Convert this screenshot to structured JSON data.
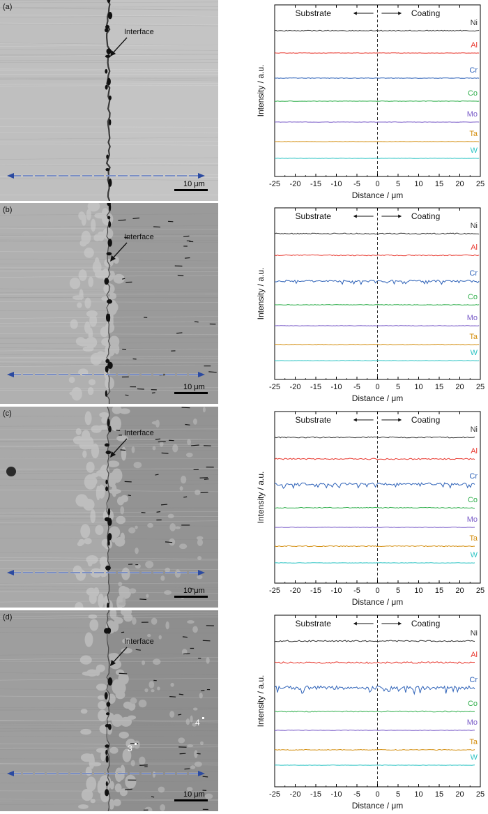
{
  "figure": {
    "interface_label": "Interface",
    "scale_bar_label": "10 μm",
    "substrate_label": "Substrate",
    "coating_label": "Coating",
    "panels": [
      {
        "letter": "(a)",
        "points": []
      },
      {
        "letter": "(b)",
        "points": []
      },
      {
        "letter": "(c)",
        "points": []
      },
      {
        "letter": "(d)",
        "points": [
          "3",
          "4"
        ]
      }
    ]
  },
  "colors": {
    "Ni": "#333333",
    "Al": "#e8382f",
    "Cr": "#2e62b8",
    "Co": "#2fae4b",
    "Mo": "#7a5cc8",
    "Ta": "#d38e0f",
    "W": "#2ec4c4",
    "arrow": "#2b4aa0"
  },
  "chart_data": [
    {
      "type": "line",
      "panel": "(a)",
      "xlabel": "Distance / μm",
      "ylabel": "Intensity / a.u.",
      "xlim": [
        -25,
        25
      ],
      "xticks": [
        -25,
        -20,
        -15,
        -10,
        -5,
        0,
        5,
        10,
        15,
        20,
        25
      ],
      "legend": "inline-right",
      "series": [
        {
          "name": "Ni",
          "roughness": 0.35
        },
        {
          "name": "Al",
          "roughness": 0.15
        },
        {
          "name": "Cr",
          "roughness": 0.2
        },
        {
          "name": "Co",
          "roughness": 0.12
        },
        {
          "name": "Mo",
          "roughness": 0.1
        },
        {
          "name": "Ta",
          "roughness": 0.12
        },
        {
          "name": "W",
          "roughness": 0.1
        }
      ]
    },
    {
      "type": "line",
      "panel": "(b)",
      "xlabel": "Distance / μm",
      "ylabel": "Intensity / a.u.",
      "xlim": [
        -25,
        25
      ],
      "xticks": [
        -25,
        -20,
        -15,
        -10,
        -5,
        0,
        5,
        10,
        15,
        20,
        25
      ],
      "legend": "inline-right",
      "series": [
        {
          "name": "Ni",
          "roughness": 0.4
        },
        {
          "name": "Al",
          "roughness": 0.35
        },
        {
          "name": "Cr",
          "roughness": 0.7
        },
        {
          "name": "Co",
          "roughness": 0.2
        },
        {
          "name": "Mo",
          "roughness": 0.12
        },
        {
          "name": "Ta",
          "roughness": 0.25
        },
        {
          "name": "W",
          "roughness": 0.12
        }
      ]
    },
    {
      "type": "line",
      "panel": "(c)",
      "xlabel": "Distance / μm",
      "ylabel": "Intensity / a.u.",
      "xlim": [
        -25,
        25
      ],
      "xticks": [
        -25,
        -20,
        -15,
        -10,
        -5,
        0,
        5,
        10,
        15,
        20,
        25
      ],
      "legend": "inline-right",
      "series": [
        {
          "name": "Ni",
          "roughness": 0.4
        },
        {
          "name": "Al",
          "roughness": 0.5
        },
        {
          "name": "Cr",
          "roughness": 0.9
        },
        {
          "name": "Co",
          "roughness": 0.3
        },
        {
          "name": "Mo",
          "roughness": 0.15
        },
        {
          "name": "Ta",
          "roughness": 0.3
        },
        {
          "name": "W",
          "roughness": 0.12
        }
      ]
    },
    {
      "type": "line",
      "panel": "(d)",
      "xlabel": "Distance / μm",
      "ylabel": "Intensity / a.u.",
      "xlim": [
        -25,
        25
      ],
      "xticks": [
        -25,
        -20,
        -15,
        -10,
        -5,
        0,
        5,
        10,
        15,
        20,
        25
      ],
      "legend": "inline-right",
      "series": [
        {
          "name": "Ni",
          "roughness": 0.5
        },
        {
          "name": "Al",
          "roughness": 0.6
        },
        {
          "name": "Cr",
          "roughness": 1.3
        },
        {
          "name": "Co",
          "roughness": 0.4
        },
        {
          "name": "Mo",
          "roughness": 0.12
        },
        {
          "name": "Ta",
          "roughness": 0.25
        },
        {
          "name": "W",
          "roughness": 0.1
        }
      ]
    }
  ]
}
